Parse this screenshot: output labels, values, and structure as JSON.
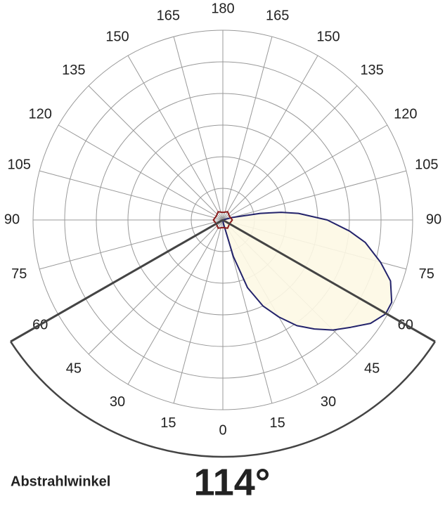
{
  "chart_data": {
    "type": "polar",
    "angle_ticks": [
      0,
      15,
      30,
      45,
      60,
      75,
      90,
      105,
      120,
      135,
      150,
      165,
      180
    ],
    "rlim": [
      0,
      100
    ],
    "series": [
      {
        "color": "#23236b",
        "fill": "#fdf8e4",
        "symmetric": false,
        "x": [
          10,
          16,
          20,
          25,
          30,
          35,
          40,
          45,
          50,
          55,
          60,
          64,
          70,
          75,
          81,
          85,
          90,
          95,
          97.5,
          100,
          105
        ],
        "values": [
          2,
          20,
          38,
          50,
          59,
          68,
          75,
          82,
          88,
          95,
          99,
          99,
          94,
          86,
          76,
          67,
          55,
          40,
          31,
          20,
          5
        ]
      },
      {
        "color": "#8b1c1c",
        "fill": "none",
        "symmetric": true,
        "x": [
          0,
          30,
          60,
          90,
          120,
          150,
          180
        ],
        "values": [
          4,
          5,
          4,
          5,
          4,
          5,
          4
        ]
      }
    ],
    "beam_angle": {
      "label": "Abstrahlwinkel",
      "value": 114,
      "value_label": "114°"
    }
  }
}
